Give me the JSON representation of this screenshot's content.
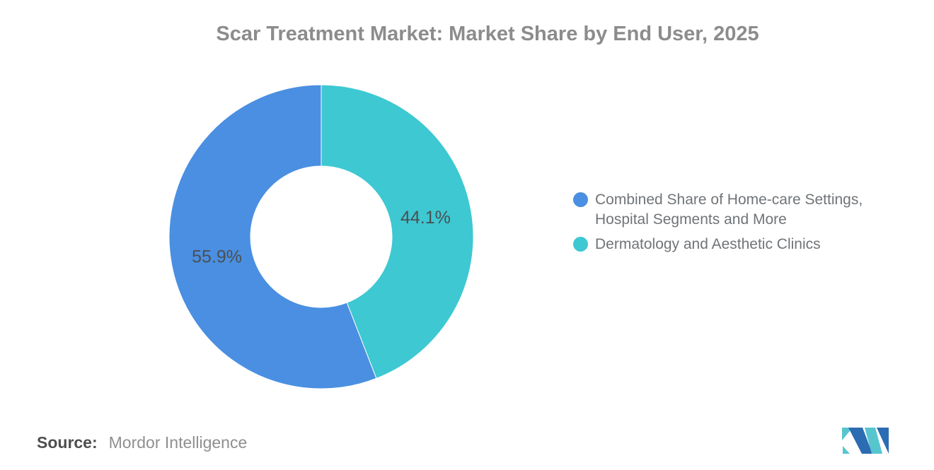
{
  "title": "Scar Treatment Market: Market Share by End User, 2025",
  "source": {
    "label": "Source:",
    "value": "Mordor Intelligence"
  },
  "legend": {
    "items": [
      {
        "lines": [
          "Combined Share of Home-care Settings,",
          "Hospital Segments and More"
        ],
        "color": "#4A8FE1"
      },
      {
        "lines": [
          "Dermatology and Aesthetic Clinics"
        ],
        "color": "#3DC8D2"
      }
    ]
  },
  "chart_data": {
    "type": "pie",
    "subtype": "donut",
    "title": "Scar Treatment Market: Market Share by End User, 2025",
    "start_at_top": true,
    "direction": "clockwise",
    "inner_radius_ratio": 0.465,
    "legend_position": "right",
    "segments": [
      {
        "name": "Dermatology and Aesthetic Clinics",
        "value": 44.1,
        "label": "44.1%",
        "color": "#3DC8D2"
      },
      {
        "name": "Combined Share of Home-care Settings, Hospital Segments and More",
        "value": 55.9,
        "label": "55.9%",
        "color": "#4A8FE1"
      }
    ]
  },
  "logo": {
    "name": "mordor-intelligence-logo",
    "blue": "#2B6CB3",
    "teal": "#56C5CE"
  }
}
